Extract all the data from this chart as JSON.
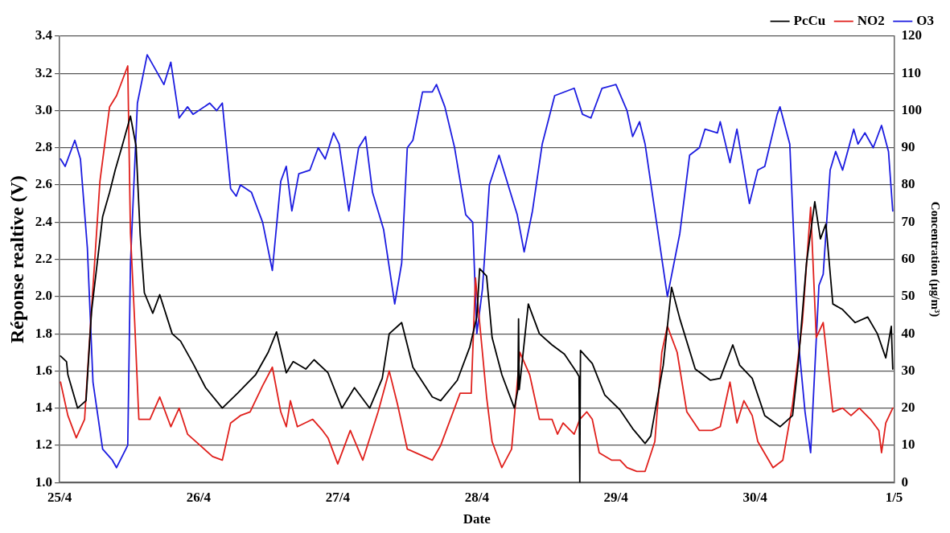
{
  "chart_data": {
    "type": "line",
    "xlabel": "Date",
    "ylabel": "Réponse realtive (V)",
    "y2label": "Concentration (µg/m³)",
    "xlim": [
      "--04-25",
      "--05-01"
    ],
    "xticks": [
      {
        "value": "--04-25",
        "label": "25/4"
      },
      {
        "value": "--04-26",
        "label": "26/4"
      },
      {
        "value": "--04-27",
        "label": "27/4"
      },
      {
        "value": "--04-28",
        "label": "28/4"
      },
      {
        "value": "--04-29",
        "label": "29/4"
      },
      {
        "value": "--04-30",
        "label": "30/4"
      },
      {
        "value": "--05-01",
        "label": "1/5"
      }
    ],
    "ylim": [
      1.0,
      3.4
    ],
    "yticks": [
      {
        "value": 1,
        "label": "1.0"
      },
      1.2,
      1.4,
      1.6,
      1.8,
      {
        "value": 2,
        "label": "2.0"
      },
      2.2,
      2.4,
      2.6,
      2.8,
      {
        "value": 3,
        "label": "3.0"
      },
      3.2,
      3.4
    ],
    "y2lim": [
      0,
      120
    ],
    "y2ticks": [
      0,
      10,
      20,
      30,
      40,
      50,
      60,
      70,
      80,
      90,
      100,
      110,
      120
    ],
    "grid": "y",
    "legend": "top right",
    "marker": "none",
    "line_style": "solid",
    "series": [
      {
        "name": "PcCu",
        "color": "#000000",
        "x": [
          "--04-25T00:10",
          "--04-25T01:12",
          "--04-25T01:26",
          "--04-25T03:07",
          "--04-25T04:34",
          "--04-25T05:31",
          "--04-25T07:26",
          "--04-25T08:38",
          "--04-25T09:36",
          "--04-25T10:48",
          "--04-25T12:14",
          "--04-25T13:12",
          "--04-25T13:55",
          "--04-25T14:38",
          "--04-25T16:05",
          "--04-25T17:17",
          "--04-25T19:26",
          "--04-25T20:53",
          "--04-25T23:02",
          "--04-26T01:12",
          "--04-26T04:05",
          "--04-26T06:43",
          "--04-26T09:50",
          "--04-26T12:00",
          "--04-26T13:26",
          "--04-26T15:07",
          "--04-26T16:19",
          "--04-26T18:29",
          "--04-26T19:55",
          "--04-26T22:19",
          "--04-27T00:43",
          "--04-27T02:53",
          "--04-27T05:31",
          "--04-27T07:41",
          "--04-27T08:53",
          "--04-27T11:02",
          "--04-27T12:58",
          "--04-27T16:19",
          "--04-27T17:46",
          "--04-27T20:38",
          "--04-27T22:48",
          "--04-28T00:00",
          "--04-28T00:29",
          "--04-28T01:41",
          "--04-28T02:38",
          "--04-28T04:19",
          "--04-28T06:00",
          "--04-28T06:29",
          "--04-28T07:05",
          "--04-28T07:12",
          "--04-28T07:19",
          "--04-28T08:53",
          "--04-28T10:48",
          "--04-28T12:58",
          "--04-28T15:07",
          "--04-28T17:17",
          "--04-28T17:38",
          "--04-28T17:46",
          "--04-28T17:53",
          "--04-28T19:55",
          "--04-28T22:05",
          "--04-29T00:43",
          "--04-29T02:53",
          "--04-29T05:02",
          "--04-29T06:00",
          "--04-29T08:10",
          "--04-29T09:36",
          "--04-29T11:02",
          "--04-29T13:41",
          "--04-29T16:19",
          "--04-29T18:00",
          "--04-29T20:10",
          "--04-29T21:22",
          "--04-29T23:31",
          "--04-30T01:41",
          "--04-30T04:19",
          "--04-30T06:29",
          "--04-30T07:26",
          "--04-30T08:53",
          "--04-30T10:19",
          "--04-30T11:17",
          "--04-30T12:14",
          "--04-30T13:26",
          "--04-30T15:07",
          "--04-30T17:17",
          "--04-30T19:26",
          "--04-30T21:07",
          "--04-30T22:34",
          "--04-30T23:31",
          "--04-30T23:46"
        ],
        "values": [
          1.68,
          1.65,
          1.58,
          1.4,
          1.44,
          1.92,
          2.43,
          2.56,
          2.68,
          2.81,
          2.97,
          2.81,
          2.33,
          2.02,
          1.91,
          2.01,
          1.8,
          1.76,
          1.64,
          1.51,
          1.4,
          1.48,
          1.58,
          1.7,
          1.81,
          1.59,
          1.65,
          1.61,
          1.66,
          1.59,
          1.4,
          1.51,
          1.4,
          1.56,
          1.8,
          1.86,
          1.62,
          1.46,
          1.44,
          1.55,
          1.73,
          1.89,
          2.15,
          2.11,
          1.78,
          1.58,
          1.44,
          1.4,
          1.5,
          1.88,
          1.5,
          1.96,
          1.8,
          1.74,
          1.69,
          1.59,
          1.57,
          1.0,
          1.71,
          1.64,
          1.47,
          1.39,
          1.29,
          1.21,
          1.25,
          1.63,
          2.05,
          1.88,
          1.61,
          1.55,
          1.56,
          1.74,
          1.63,
          1.56,
          1.36,
          1.3,
          1.36,
          1.63,
          2.18,
          2.51,
          2.31,
          2.39,
          1.96,
          1.93,
          1.86,
          1.89,
          1.8,
          1.67,
          1.84,
          1.61
        ]
      },
      {
        "name": "NO2",
        "color": "#e0201c",
        "axis": "y2",
        "x": [
          "--04-25T00:10",
          "--04-25T01:26",
          "--04-25T02:53",
          "--04-25T04:19",
          "--04-25T05:17",
          "--04-25T06:58",
          "--04-25T08:38",
          "--04-25T09:50",
          "--04-25T11:46",
          "--04-25T12:14",
          "--04-25T12:58",
          "--04-25T13:41",
          "--04-25T15:36",
          "--04-25T17:17",
          "--04-25T19:12",
          "--04-25T20:38",
          "--04-25T22:05",
          "--04-26T00:14",
          "--04-26T02:24",
          "--04-26T04:05",
          "--04-26T05:31",
          "--04-26T07:12",
          "--04-26T08:53",
          "--04-26T11:02",
          "--04-26T12:43",
          "--04-26T14:10",
          "--04-26T15:07",
          "--04-26T15:50",
          "--04-26T17:02",
          "--04-26T19:41",
          "--04-26T21:22",
          "--04-26T22:19",
          "--04-27T00:00",
          "--04-27T02:10",
          "--04-27T04:19",
          "--04-27T06:58",
          "--04-27T08:53",
          "--04-27T10:19",
          "--04-27T12:00",
          "--04-27T13:26",
          "--04-27T16:19",
          "--04-27T17:46",
          "--04-27T21:07",
          "--04-27T23:02",
          "--04-27T23:46",
          "--04-28T00:29",
          "--04-28T01:41",
          "--04-28T02:38",
          "--04-28T04:19",
          "--04-28T06:00",
          "--04-28T07:26",
          "--04-28T09:07",
          "--04-28T10:48",
          "--04-28T12:58",
          "--04-28T13:55",
          "--04-28T14:53",
          "--04-28T16:48",
          "--04-28T17:46",
          "--04-28T18:58",
          "--04-28T19:55",
          "--04-28T21:07",
          "--04-28T23:17",
          "--04-29T00:43",
          "--04-29T01:55",
          "--04-29T03:36",
          "--04-29T05:02",
          "--04-29T06:43",
          "--04-29T07:55",
          "--04-29T08:53",
          "--04-29T10:34",
          "--04-29T12:14",
          "--04-29T14:24",
          "--04-29T16:34",
          "--04-29T18:00",
          "--04-29T19:41",
          "--04-29T20:53",
          "--04-29T22:05",
          "--04-29T23:31",
          "--04-30T00:29",
          "--04-30T03:07",
          "--04-30T04:48",
          "--04-30T06:29",
          "--04-30T08:10",
          "--04-30T09:36",
          "--04-30T10:34",
          "--04-30T11:46",
          "--04-30T13:26",
          "--04-30T15:07",
          "--04-30T16:34",
          "--04-30T18:00",
          "--04-30T19:55",
          "--04-30T21:22",
          "--04-30T21:50",
          "--04-30T22:34",
          "--04-30T23:46"
        ],
        "values": [
          27,
          18,
          12,
          17,
          41,
          81,
          101,
          104,
          112,
          67,
          43,
          17,
          17,
          23,
          15,
          20,
          13,
          10,
          7,
          6,
          16,
          18,
          19,
          26,
          31,
          19,
          15,
          22,
          15,
          17,
          14,
          12,
          5,
          14,
          6,
          19,
          30,
          21,
          9,
          8,
          6,
          10,
          24,
          24,
          55,
          43,
          23,
          11,
          4,
          9,
          35,
          29,
          17,
          17,
          13,
          16,
          13,
          17,
          19,
          17,
          8,
          6,
          6,
          4,
          3,
          3,
          11,
          35,
          42,
          35,
          19,
          14,
          14,
          15,
          27,
          16,
          22,
          18,
          11,
          4,
          6,
          21,
          43,
          74,
          39,
          43,
          19,
          20,
          18,
          20,
          17,
          14,
          8,
          16,
          20
        ]
      },
      {
        "name": "O3",
        "color": "#1c1ce0",
        "axis": "y2",
        "x": [
          "--04-25T00:10",
          "--04-25T00:58",
          "--04-25T02:38",
          "--04-25T03:36",
          "--04-25T04:48",
          "--04-25T05:46",
          "--04-25T07:26",
          "--04-25T09:07",
          "--04-25T09:50",
          "--04-25T11:46",
          "--04-25T12:14",
          "--04-25T13:26",
          "--04-25T15:07",
          "--04-25T16:34",
          "--04-25T18:00",
          "--04-25T19:12",
          "--04-25T20:38",
          "--04-25T22:05",
          "--04-25T23:02",
          "--04-26T01:55",
          "--04-26T03:07",
          "--04-26T04:05",
          "--04-26T05:31",
          "--04-26T06:29",
          "--04-26T07:12",
          "--04-26T09:07",
          "--04-26T11:02",
          "--04-26T12:43",
          "--04-26T14:10",
          "--04-26T15:07",
          "--04-26T16:05",
          "--04-26T17:17",
          "--04-26T19:12",
          "--04-26T20:38",
          "--04-26T21:50",
          "--04-26T23:17",
          "--04-27T00:14",
          "--04-27T01:55",
          "--04-27T03:36",
          "--04-27T04:48",
          "--04-27T06:00",
          "--04-27T07:55",
          "--04-27T09:50",
          "--04-27T11:02",
          "--04-27T12:00",
          "--04-27T12:58",
          "--04-27T14:38",
          "--04-27T16:19",
          "--04-27T17:02",
          "--04-27T18:29",
          "--04-27T20:10",
          "--04-27T22:05",
          "--04-27T23:17",
          "--04-28T00:00",
          "--04-28T00:58",
          "--04-28T02:10",
          "--04-28T03:50",
          "--04-28T06:58",
          "--04-28T08:10",
          "--04-28T09:36",
          "--04-28T11:17",
          "--04-28T13:26",
          "--04-28T16:48",
          "--04-28T18:14",
          "--04-28T19:41",
          "--04-28T21:36",
          "--04-29T00:00",
          "--04-29T01:55",
          "--04-29T02:53",
          "--04-29T04:05",
          "--04-29T05:02",
          "--04-29T06:43",
          "--04-29T08:53",
          "--04-29T11:02",
          "--04-29T12:43",
          "--04-29T14:24",
          "--04-29T15:22",
          "--04-29T17:31",
          "--04-29T18:00",
          "--04-29T19:41",
          "--04-29T20:53",
          "--04-29T23:02",
          "--04-30T00:29",
          "--04-30T01:41",
          "--04-30T03:50",
          "--04-30T04:19",
          "--04-30T06:00",
          "--04-30T07:26",
          "--04-30T08:38",
          "--04-30T09:36",
          "--04-30T11:02",
          "--04-30T11:46",
          "--04-30T12:58",
          "--04-30T13:55",
          "--04-30T15:07",
          "--04-30T17:02",
          "--04-30T17:46",
          "--04-30T18:58",
          "--04-30T20:24",
          "--04-30T21:50",
          "--04-30T23:02",
          "--04-30T23:46"
        ],
        "values": [
          87,
          85,
          92,
          87,
          63,
          27,
          9,
          6,
          4,
          10,
          59,
          102,
          115,
          111,
          107,
          113,
          98,
          101,
          99,
          102,
          100,
          102,
          79,
          77,
          80,
          78,
          70,
          57,
          81,
          85,
          73,
          83,
          84,
          90,
          87,
          94,
          91,
          73,
          90,
          93,
          78,
          68,
          48,
          59,
          90,
          92,
          105,
          105,
          107,
          101,
          90,
          72,
          70,
          40,
          52,
          80,
          88,
          72,
          62,
          73,
          91,
          104,
          106,
          99,
          98,
          106,
          107,
          100,
          93,
          97,
          91,
          73,
          50,
          67,
          88,
          90,
          95,
          94,
          97,
          86,
          95,
          75,
          84,
          85,
          99,
          101,
          91,
          39,
          19,
          8,
          53,
          56,
          84,
          89,
          84,
          95,
          91,
          94,
          90,
          96,
          89,
          73
        ]
      }
    ]
  }
}
